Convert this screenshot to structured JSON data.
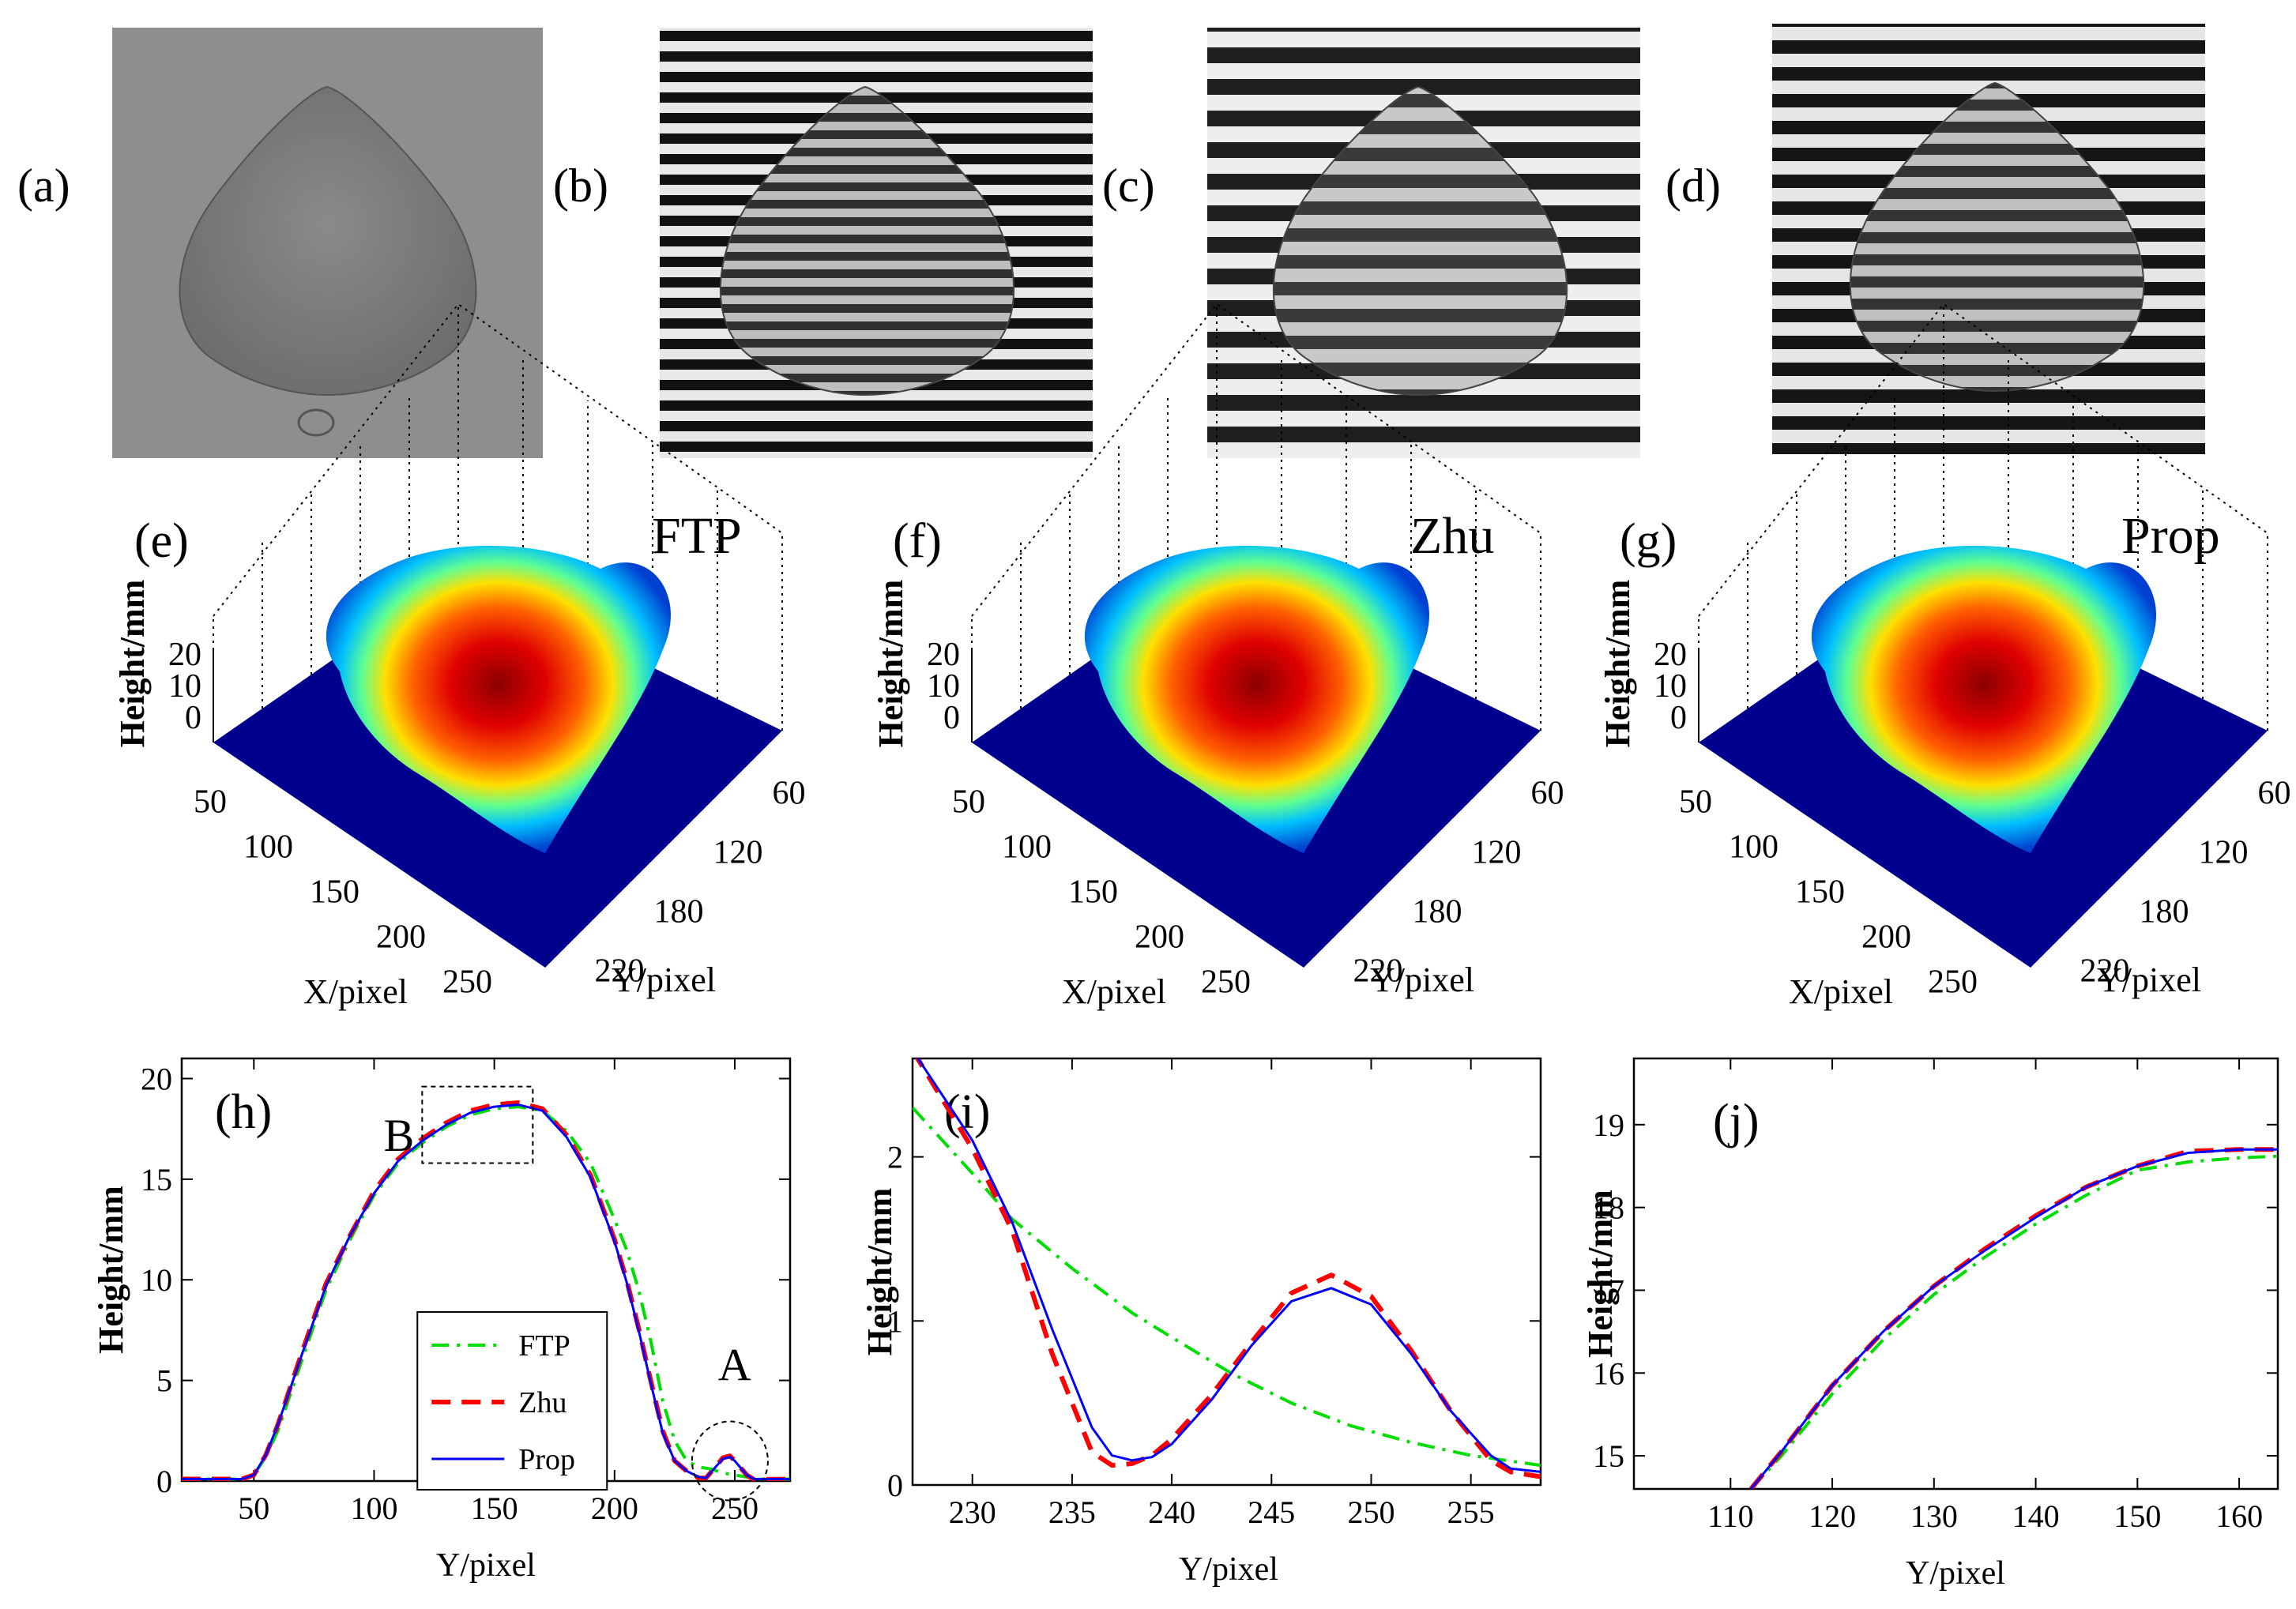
{
  "panels": {
    "a": {
      "label": "(a)"
    },
    "b": {
      "label": "(b)"
    },
    "c": {
      "label": "(c)"
    },
    "d": {
      "label": "(d)"
    }
  },
  "surfaces": [
    {
      "label": "(e)",
      "method": "FTP",
      "zlabel": "Height/mm",
      "xlabel": "X/pixel",
      "ylabel": "Y/pixel",
      "zticks": [
        "20",
        "10",
        "0"
      ],
      "xticks": [
        "50",
        "100",
        "150",
        "200",
        "250"
      ],
      "yticks": [
        "60",
        "120",
        "180",
        "220"
      ]
    },
    {
      "label": "(f)",
      "method": "Zhu",
      "zlabel": "Height/mm",
      "xlabel": "X/pixel",
      "ylabel": "Y/pixel",
      "zticks": [
        "20",
        "10",
        "0"
      ],
      "xticks": [
        "50",
        "100",
        "150",
        "200",
        "250"
      ],
      "yticks": [
        "60",
        "120",
        "180",
        "220"
      ]
    },
    {
      "label": "(g)",
      "method": "Prop",
      "zlabel": "Height/mm",
      "xlabel": "X/pixel",
      "ylabel": "Y/pixel",
      "zticks": [
        "20",
        "10",
        "0"
      ],
      "xticks": [
        "50",
        "100",
        "150",
        "200",
        "250"
      ],
      "yticks": [
        "60",
        "120",
        "180",
        "220"
      ]
    }
  ],
  "colors": {
    "FTP": "#00dd00",
    "Zhu": "#ff0000",
    "Prop": "#0000ff",
    "stripe_dark": "#111111",
    "stripe_light": "#e8e8e8",
    "surface_bg": "#00008f"
  },
  "chart_data": [
    {
      "panel": "(h)",
      "type": "line",
      "xlabel": "Y/pixel",
      "ylabel": "Height/mm",
      "xlim": [
        20,
        273
      ],
      "ylim": [
        0,
        21
      ],
      "xticks": [
        50,
        100,
        150,
        200,
        250
      ],
      "yticks": [
        0,
        5,
        10,
        15,
        20
      ],
      "annotations": {
        "A": "A",
        "B": "B"
      },
      "legend": {
        "position": "bottom-right",
        "entries": [
          "FTP",
          "Zhu",
          "Prop"
        ]
      },
      "series": [
        {
          "name": "FTP",
          "style": "dash-dot",
          "x": [
            20,
            45,
            50,
            55,
            60,
            70,
            80,
            90,
            100,
            110,
            120,
            130,
            140,
            150,
            160,
            170,
            180,
            190,
            200,
            205,
            210,
            215,
            220,
            225,
            230,
            235,
            240,
            245,
            250,
            255,
            260,
            273
          ],
          "y": [
            0.1,
            0.1,
            0.3,
            1.2,
            2.5,
            6.0,
            9.5,
            12.0,
            14.2,
            15.8,
            16.8,
            17.6,
            18.2,
            18.5,
            18.6,
            18.4,
            17.4,
            15.8,
            13.0,
            11.5,
            9.5,
            7.0,
            4.0,
            2.0,
            1.0,
            0.7,
            0.6,
            0.4,
            0.3,
            0.2,
            0.1,
            0.1
          ]
        },
        {
          "name": "Zhu",
          "style": "dashed",
          "x": [
            20,
            45,
            50,
            55,
            60,
            70,
            80,
            90,
            100,
            110,
            120,
            130,
            140,
            150,
            160,
            170,
            180,
            190,
            200,
            205,
            210,
            215,
            220,
            225,
            230,
            235,
            238,
            242,
            245,
            248,
            250,
            255,
            258,
            273
          ],
          "y": [
            0.1,
            0.1,
            0.3,
            1.3,
            2.8,
            6.4,
            9.8,
            12.2,
            14.4,
            16.0,
            17.0,
            17.8,
            18.4,
            18.7,
            18.8,
            18.5,
            17.2,
            15.2,
            12.0,
            10.0,
            7.6,
            5.0,
            2.5,
            1.0,
            0.5,
            0.15,
            0.15,
            0.7,
            1.15,
            1.25,
            1.0,
            0.3,
            0.08,
            0.1
          ]
        },
        {
          "name": "Prop",
          "style": "solid",
          "x": [
            20,
            45,
            50,
            55,
            60,
            70,
            80,
            90,
            100,
            110,
            120,
            130,
            140,
            150,
            160,
            170,
            180,
            190,
            200,
            205,
            210,
            215,
            220,
            225,
            230,
            235,
            238,
            242,
            245,
            248,
            250,
            255,
            258,
            273
          ],
          "y": [
            0.1,
            0.1,
            0.3,
            1.3,
            2.8,
            6.3,
            9.7,
            12.2,
            14.3,
            15.9,
            16.9,
            17.7,
            18.3,
            18.6,
            18.7,
            18.4,
            17.1,
            15.1,
            11.9,
            9.9,
            7.5,
            4.9,
            2.4,
            1.0,
            0.5,
            0.2,
            0.15,
            0.7,
            1.1,
            1.2,
            1.0,
            0.3,
            0.1,
            0.1
          ]
        }
      ]
    },
    {
      "panel": "(i)",
      "type": "line",
      "xlabel": "Y/pixel",
      "ylabel": "Height/mm",
      "xlim": [
        227,
        258.5
      ],
      "ylim": [
        0,
        2.6
      ],
      "xticks": [
        230,
        235,
        240,
        245,
        250,
        255
      ],
      "yticks": [
        0,
        1,
        2
      ],
      "series": [
        {
          "name": "FTP",
          "style": "dash-dot",
          "x": [
            227,
            230,
            232,
            235,
            238,
            240,
            243,
            246,
            249,
            252,
            255,
            258.5
          ],
          "y": [
            2.3,
            1.9,
            1.62,
            1.32,
            1.05,
            0.9,
            0.68,
            0.5,
            0.36,
            0.26,
            0.18,
            0.12
          ]
        },
        {
          "name": "Zhu",
          "style": "dashed",
          "x": [
            227,
            230,
            232,
            234,
            236,
            237,
            238,
            239,
            240,
            242,
            244,
            246,
            248,
            250,
            252,
            254,
            256,
            257,
            258.5
          ],
          "y": [
            2.65,
            2.05,
            1.55,
            0.8,
            0.2,
            0.12,
            0.13,
            0.18,
            0.28,
            0.55,
            0.87,
            1.17,
            1.28,
            1.15,
            0.82,
            0.45,
            0.15,
            0.08,
            0.05
          ]
        },
        {
          "name": "Prop",
          "style": "solid",
          "x": [
            227,
            230,
            232,
            234,
            236,
            237,
            238,
            239,
            240,
            242,
            244,
            246,
            248,
            250,
            252,
            254,
            256,
            257,
            258.5
          ],
          "y": [
            2.65,
            2.1,
            1.6,
            0.95,
            0.35,
            0.18,
            0.15,
            0.17,
            0.25,
            0.52,
            0.85,
            1.12,
            1.2,
            1.1,
            0.8,
            0.45,
            0.18,
            0.1,
            0.08
          ]
        }
      ]
    },
    {
      "panel": "(j)",
      "type": "line",
      "xlabel": "Y/pixel",
      "ylabel": "Height/mm",
      "xlim": [
        100.5,
        163.8
      ],
      "ylim": [
        14.6,
        19.8
      ],
      "xticks": [
        110,
        120,
        130,
        140,
        150,
        160
      ],
      "yticks": [
        15,
        16,
        17,
        18,
        19
      ],
      "series": [
        {
          "name": "FTP",
          "style": "dash-dot",
          "x": [
            112,
            115,
            120,
            125,
            130,
            135,
            140,
            145,
            150,
            155,
            160,
            163.8
          ],
          "y": [
            14.6,
            15.0,
            15.75,
            16.4,
            16.95,
            17.4,
            17.8,
            18.15,
            18.45,
            18.55,
            18.6,
            18.62
          ]
        },
        {
          "name": "Zhu",
          "style": "dashed",
          "x": [
            112,
            115,
            120,
            125,
            130,
            135,
            140,
            145,
            150,
            155,
            160,
            163.8
          ],
          "y": [
            14.6,
            15.05,
            15.85,
            16.5,
            17.05,
            17.5,
            17.9,
            18.25,
            18.5,
            18.68,
            18.7,
            18.7
          ]
        },
        {
          "name": "Prop",
          "style": "solid",
          "x": [
            112,
            115,
            120,
            125,
            130,
            135,
            140,
            145,
            150,
            155,
            160,
            163.8
          ],
          "y": [
            14.6,
            15.05,
            15.85,
            16.5,
            17.05,
            17.48,
            17.88,
            18.25,
            18.5,
            18.66,
            18.7,
            18.7
          ]
        }
      ]
    }
  ]
}
